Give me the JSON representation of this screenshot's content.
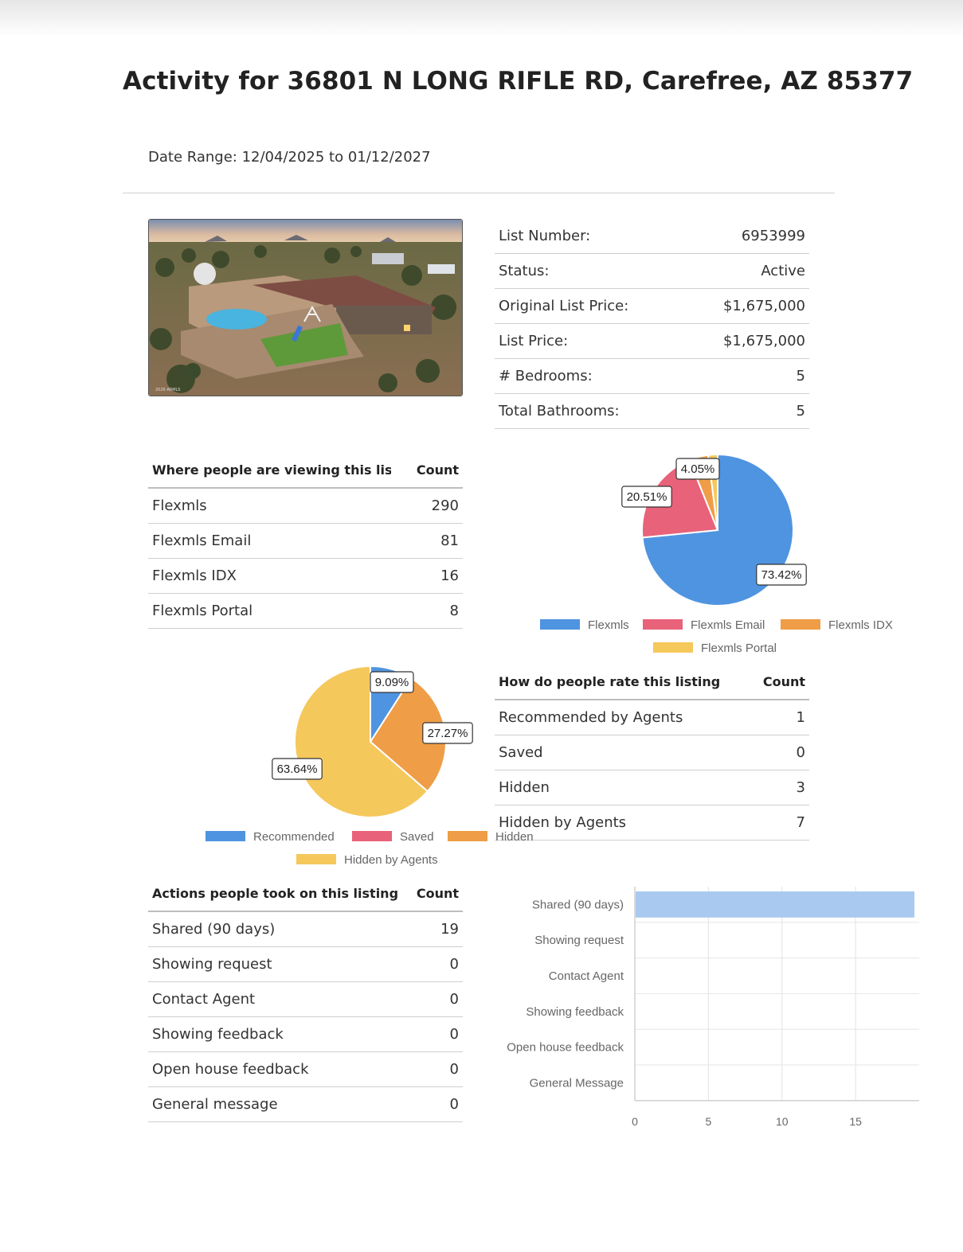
{
  "page": {
    "title": "Activity for 36801 N LONG RIFLE RD, Carefree, AZ 85377",
    "date_range": "Date Range: 12/04/2025 to 01/12/2027",
    "photo_watermark": "2026 ARMLS"
  },
  "listing_info": {
    "rows": [
      {
        "label": "List Number:",
        "value": "6953999"
      },
      {
        "label": "Status:",
        "value": "Active"
      },
      {
        "label": "Original List Price:",
        "value": "$1,675,000"
      },
      {
        "label": "List Price:",
        "value": "$1,675,000"
      },
      {
        "label": "# Bedrooms:",
        "value": "5"
      },
      {
        "label": "Total Bathrooms:",
        "value": "5"
      }
    ]
  },
  "views_table": {
    "header": {
      "label": "Where people are viewing this listing",
      "count": "Count"
    },
    "rows": [
      {
        "label": "Flexmls",
        "value": "290"
      },
      {
        "label": "Flexmls Email",
        "value": "81"
      },
      {
        "label": "Flexmls IDX",
        "value": "16"
      },
      {
        "label": "Flexmls Portal",
        "value": "8"
      }
    ]
  },
  "rate_table": {
    "header": {
      "label": "How do people rate this listing",
      "count": "Count"
    },
    "rows": [
      {
        "label": "Recommended by Agents",
        "value": "1"
      },
      {
        "label": "Saved",
        "value": "0"
      },
      {
        "label": "Hidden",
        "value": "3"
      },
      {
        "label": "Hidden by Agents",
        "value": "7"
      }
    ]
  },
  "actions_table": {
    "header": {
      "label": "Actions people took on this listing",
      "count": "Count"
    },
    "rows": [
      {
        "label": "Shared (90 days)",
        "value": "19"
      },
      {
        "label": "Showing request",
        "value": "0"
      },
      {
        "label": "Contact Agent",
        "value": "0"
      },
      {
        "label": "Showing feedback",
        "value": "0"
      },
      {
        "label": "Open house feedback",
        "value": "0"
      },
      {
        "label": "General message",
        "value": "0"
      }
    ]
  },
  "chart_data": [
    {
      "type": "pie",
      "categories": [
        "Flexmls",
        "Flexmls Email",
        "Flexmls IDX",
        "Flexmls Portal"
      ],
      "values": [
        290,
        81,
        16,
        8
      ],
      "slice_labels": [
        "73.42%",
        "20.51%",
        "4.05%",
        ""
      ],
      "colors": [
        "#4f94e0",
        "#e8627a",
        "#ef9d46",
        "#f5c85c"
      ],
      "legend_position": "bottom"
    },
    {
      "type": "pie",
      "categories": [
        "Recommended",
        "Saved",
        "Hidden",
        "Hidden by Agents"
      ],
      "values": [
        1,
        0,
        3,
        7
      ],
      "slice_labels": [
        "9.09%",
        "",
        "27.27%",
        "63.64%"
      ],
      "colors": [
        "#4f94e0",
        "#e8627a",
        "#ef9d46",
        "#f5c85c"
      ],
      "legend_position": "bottom"
    },
    {
      "type": "bar",
      "orientation": "horizontal",
      "categories": [
        "Shared (90 days)",
        "Showing request",
        "Contact Agent",
        "Showing feedback",
        "Open house feedback",
        "General Message"
      ],
      "values": [
        19,
        0,
        0,
        0,
        0,
        0
      ],
      "xticks": [
        "0",
        "5",
        "10",
        "15"
      ],
      "xlim": [
        0,
        19
      ],
      "grid": true,
      "color": "#a9c9f0"
    }
  ]
}
